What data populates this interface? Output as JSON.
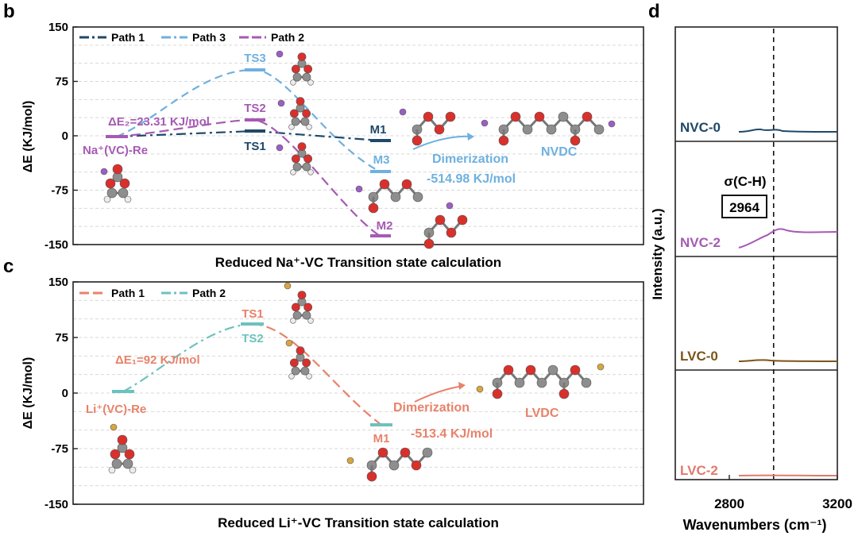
{
  "colors": {
    "navy": "#1f4868",
    "sky": "#6fb0df",
    "purple": "#a65ab4",
    "orange": "#e8826a",
    "teal": "#6cc2bd",
    "brown": "#7a5518",
    "pink_line": "#e07a6c",
    "grid": "#d9d9d9",
    "text": "#1a1a1a",
    "na_atom": "#9b5fc4",
    "li_atom": "#d6a640",
    "carbon": "#8e8e8e",
    "oxygen": "#d9302c",
    "hydrogen": "#ececec"
  },
  "chart_data": [
    {
      "panel": "b",
      "type": "line",
      "ylabel": "ΔE (KJ/mol)",
      "xlabel": "Reduced Na⁺-VC Transition state calculation",
      "ylim": [
        -150,
        150
      ],
      "yticks": [
        "150",
        "75",
        "0",
        "-75",
        "-150"
      ],
      "legend": [
        "Path 1",
        "Path 3",
        "Path 2"
      ],
      "series": [
        {
          "name": "Path 1",
          "color_key": "navy",
          "states": [
            "Na⁺(VC)-Re",
            "TS1",
            "M1"
          ],
          "values": [
            0,
            8,
            -7
          ]
        },
        {
          "name": "Path 3",
          "color_key": "sky",
          "states": [
            "Na⁺(VC)-Re",
            "TS3",
            "M3",
            "NVDC"
          ],
          "values": [
            0,
            90,
            -48,
            null
          ]
        },
        {
          "name": "Path 2",
          "color_key": "purple",
          "states": [
            "Na⁺(VC)-Re",
            "TS2",
            "M2"
          ],
          "values": [
            0,
            23.31,
            -137
          ]
        }
      ],
      "annotations": {
        "start": "Na⁺(VC)-Re",
        "ts3": "TS3",
        "ts2": "TS2",
        "ts1": "TS1",
        "m1": "M1",
        "m3": "M3",
        "m2": "M2",
        "barrier": "ΔE₂=23.31 KJ/mol",
        "dimerization": "Dimerization",
        "dimer_energy": "-514.98 KJ/mol",
        "product": "NVDC"
      }
    },
    {
      "panel": "c",
      "type": "line",
      "ylabel": "ΔE (KJ/mol)",
      "xlabel": "Reduced Li⁺-VC Transition state calculation",
      "ylim": [
        -150,
        150
      ],
      "yticks": [
        "150",
        "75",
        "0",
        "-75",
        "-150"
      ],
      "legend": [
        "Path 1",
        "Path 2"
      ],
      "series": [
        {
          "name": "Path 1",
          "color_key": "orange",
          "states": [
            "Li⁺(VC)-Re",
            "TS1",
            "M1"
          ],
          "values": [
            0,
            92,
            -43
          ]
        },
        {
          "name": "Path 2",
          "color_key": "teal",
          "states": [
            "Li⁺(VC)-Re",
            "TS2"
          ],
          "values": [
            0,
            92
          ]
        }
      ],
      "annotations": {
        "start": "Li⁺(VC)-Re",
        "ts1": "TS1",
        "ts2": "TS2",
        "m1": "M1",
        "barrier": "ΔE₁=92 KJ/mol",
        "dimerization": "Dimerization",
        "dimer_energy": "-513.4 KJ/mol",
        "product": "LVDC"
      }
    },
    {
      "panel": "d",
      "type": "line",
      "ylabel": "Intensity (a.u.)",
      "xlabel": "Wavenumbers (cm⁻¹)",
      "xlim": [
        2600,
        3200
      ],
      "xticks": [
        2800,
        3200
      ],
      "marker": {
        "label": "σ(C-H)",
        "value": 2964
      },
      "series": [
        {
          "name": "NVC-0",
          "color_key": "navy"
        },
        {
          "name": "NVC-2",
          "color_key": "purple"
        },
        {
          "name": "LVC-0",
          "color_key": "brown"
        },
        {
          "name": "LVC-2",
          "color_key": "pink_line"
        }
      ]
    }
  ],
  "panel_labels": {
    "b": "b",
    "c": "c",
    "d": "d"
  }
}
